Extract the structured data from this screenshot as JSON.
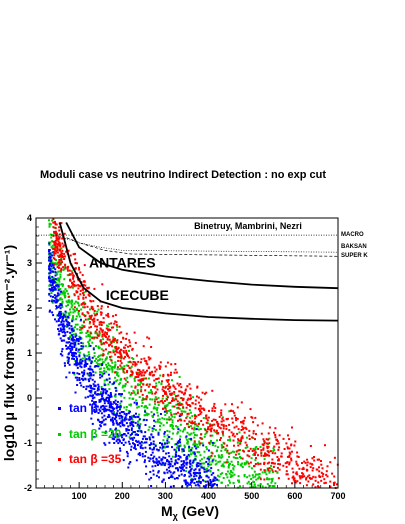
{
  "page": {
    "title": "Moduli case vs neutrino Indirect Detection : no exp cut"
  },
  "chart_data": {
    "type": "scatter",
    "title": "Moduli case vs neutrino Indirect Detection : no exp cut",
    "xlabel": "M",
    "xlabel_sub": "χ",
    "xlabel_unit": " (GeV)",
    "ylabel": "log10 μ flux from sun (km⁻².yr⁻¹)",
    "xlim": [
      0,
      700
    ],
    "ylim": [
      -2,
      4
    ],
    "x_ticks": [
      100,
      200,
      300,
      400,
      500,
      600,
      700
    ],
    "y_ticks": [
      -2,
      -1,
      0,
      1,
      2,
      3,
      4
    ],
    "annotation": "Binetruy, Mambrini, Nezri",
    "series": [
      {
        "name": "tan β =5",
        "color": "#0000ff",
        "x_range": [
          30,
          420
        ],
        "center": [
          [
            30,
            3.0
          ],
          [
            60,
            1.6
          ],
          [
            100,
            0.8
          ],
          [
            150,
            0.0
          ],
          [
            200,
            -0.55
          ],
          [
            250,
            -1.0
          ],
          [
            300,
            -1.35
          ],
          [
            350,
            -1.65
          ],
          [
            400,
            -1.9
          ],
          [
            420,
            -2.0
          ]
        ],
        "spread": 0.45
      },
      {
        "name": "tan β =20",
        "color": "#00cc00",
        "x_range": [
          30,
          560
        ],
        "center": [
          [
            30,
            3.3
          ],
          [
            60,
            2.4
          ],
          [
            100,
            1.5
          ],
          [
            150,
            0.9
          ],
          [
            200,
            0.35
          ],
          [
            250,
            -0.1
          ],
          [
            300,
            -0.45
          ],
          [
            350,
            -0.85
          ],
          [
            400,
            -1.2
          ],
          [
            450,
            -1.45
          ],
          [
            500,
            -1.75
          ],
          [
            560,
            -2.0
          ]
        ],
        "spread": 0.55
      },
      {
        "name": "tan β =35",
        "color": "#ff0000",
        "x_range": [
          40,
          700
        ],
        "center": [
          [
            40,
            3.7
          ],
          [
            70,
            3.0
          ],
          [
            100,
            2.4
          ],
          [
            150,
            1.6
          ],
          [
            200,
            1.05
          ],
          [
            250,
            0.6
          ],
          [
            300,
            0.2
          ],
          [
            350,
            -0.15
          ],
          [
            400,
            -0.45
          ],
          [
            450,
            -0.75
          ],
          [
            500,
            -1.0
          ],
          [
            550,
            -1.25
          ],
          [
            600,
            -1.5
          ],
          [
            650,
            -1.7
          ],
          [
            700,
            -1.95
          ]
        ],
        "spread": 0.4
      }
    ],
    "limit_curves": [
      {
        "name": "ANTARES",
        "points": [
          [
            70,
            3.9
          ],
          [
            100,
            3.35
          ],
          [
            150,
            3.0
          ],
          [
            200,
            2.85
          ],
          [
            300,
            2.7
          ],
          [
            400,
            2.6
          ],
          [
            500,
            2.52
          ],
          [
            600,
            2.47
          ],
          [
            700,
            2.44
          ]
        ],
        "label_at": [
          200,
          2.9
        ]
      },
      {
        "name": "ICECUBE",
        "points": [
          [
            55,
            3.9
          ],
          [
            80,
            3.0
          ],
          [
            110,
            2.45
          ],
          [
            150,
            2.15
          ],
          [
            200,
            2.0
          ],
          [
            300,
            1.88
          ],
          [
            400,
            1.8
          ],
          [
            500,
            1.76
          ],
          [
            600,
            1.73
          ],
          [
            700,
            1.72
          ]
        ],
        "label_at": [
          235,
          2.18
        ]
      }
    ],
    "exp_limits": [
      {
        "name": "MACRO",
        "style": "dotted",
        "points": [
          [
            0,
            3.62
          ],
          [
            700,
            3.62
          ]
        ]
      },
      {
        "name": "BAKSAN",
        "style": "dotted",
        "points": [
          [
            50,
            3.6
          ],
          [
            100,
            3.45
          ],
          [
            150,
            3.35
          ],
          [
            200,
            3.28
          ],
          [
            700,
            3.24
          ]
        ]
      },
      {
        "name": "SUPER K",
        "style": "dashed",
        "points": [
          [
            60,
            3.6
          ],
          [
            110,
            3.42
          ],
          [
            160,
            3.28
          ],
          [
            220,
            3.2
          ],
          [
            700,
            3.15
          ]
        ]
      }
    ]
  }
}
